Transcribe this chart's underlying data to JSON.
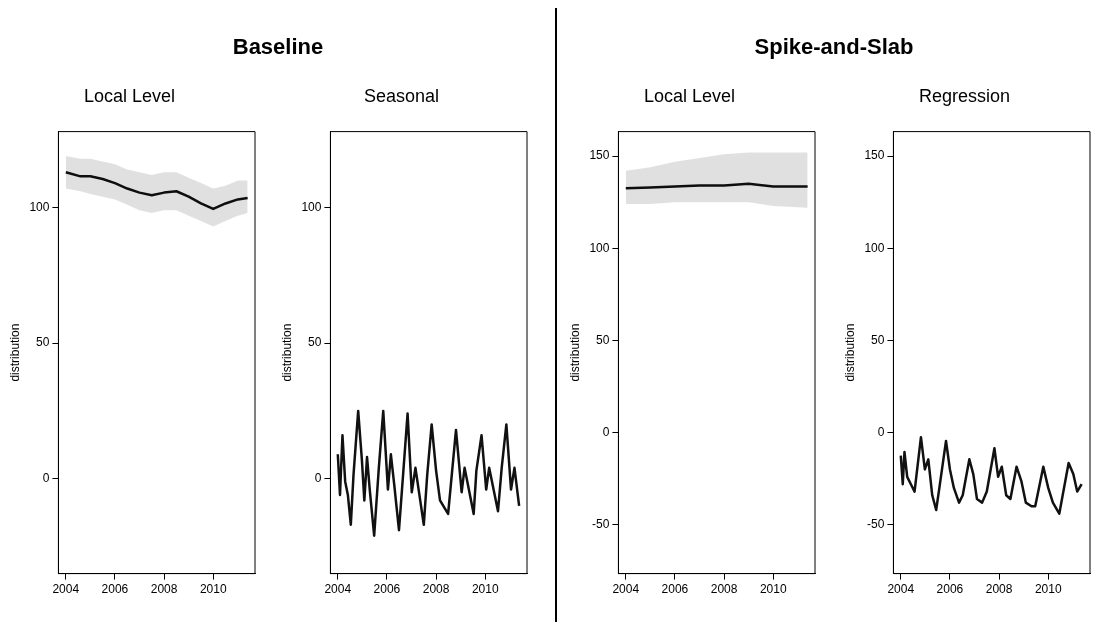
{
  "chart_data": [
    {
      "type": "line",
      "title": "Local Level",
      "ylabel": "distribution",
      "annotations": [
        "Baseline"
      ],
      "xlim": [
        2003.7,
        2011.7
      ],
      "xticks": [
        2004,
        2006,
        2008,
        2010
      ],
      "ylim": [
        -35,
        128
      ],
      "yticks": [
        0,
        50,
        100
      ],
      "grid": false,
      "legend": false,
      "series": [
        {
          "color": "#111111",
          "x": [
            2004,
            2004.6,
            2005,
            2005.5,
            2006,
            2006.5,
            2007,
            2007.5,
            2008,
            2008.5,
            2009,
            2009.5,
            2010,
            2010.5,
            2011,
            2011.4
          ],
          "values": [
            113,
            111.5,
            111.5,
            110.5,
            109,
            107,
            105.5,
            104.5,
            105.5,
            106,
            104,
            101.5,
            99.5,
            101.5,
            103,
            103.5
          ],
          "lower": [
            107,
            106,
            105,
            104,
            103,
            101,
            99,
            98,
            99,
            99,
            97,
            95,
            93,
            95,
            97,
            98
          ],
          "upper": [
            119,
            118,
            118,
            117,
            116,
            114,
            113,
            112,
            113,
            113,
            111,
            109,
            107,
            108,
            110,
            110
          ]
        }
      ]
    },
    {
      "type": "line",
      "title": "Seasonal",
      "ylabel": "distribution",
      "xlim": [
        2003.7,
        2011.7
      ],
      "xticks": [
        2004,
        2006,
        2008,
        2010
      ],
      "ylim": [
        -35,
        128
      ],
      "yticks": [
        0,
        50,
        100
      ],
      "grid": false,
      "legend": false,
      "series": [
        {
          "color": "#111111",
          "x": [
            2004.0,
            2004.09,
            2004.19,
            2004.3,
            2004.41,
            2004.53,
            2004.64,
            2004.83,
            2004.98,
            2005.08,
            2005.19,
            2005.3,
            2005.48,
            2005.67,
            2005.85,
            2006.04,
            2006.16,
            2006.3,
            2006.49,
            2006.67,
            2006.84,
            2007.01,
            2007.16,
            2007.5,
            2007.64,
            2007.82,
            2008.0,
            2008.16,
            2008.49,
            2008.81,
            2009.04,
            2009.16,
            2009.53,
            2009.64,
            2009.85,
            2010.04,
            2010.16,
            2010.52,
            2010.67,
            2010.86,
            2011.05,
            2011.19,
            2011.38
          ],
          "values": [
            9,
            -6,
            16,
            -1,
            -6,
            -17,
            1.5,
            25,
            7,
            -8,
            8,
            -4,
            -21,
            4,
            25,
            -4,
            9,
            -2.5,
            -19,
            3,
            24,
            -5,
            4,
            -17,
            1.5,
            20,
            3,
            -8,
            -13,
            18,
            -5,
            4,
            -13,
            3,
            16,
            -4,
            4,
            -12,
            4,
            20,
            -4,
            4,
            -10
          ]
        }
      ]
    },
    {
      "type": "line",
      "title": "Local Level",
      "ylabel": "distribution",
      "annotations": [
        "Spike-and-Slab"
      ],
      "xlim": [
        2003.7,
        2011.7
      ],
      "xticks": [
        2004,
        2006,
        2008,
        2010
      ],
      "ylim": [
        -76.5,
        163.3
      ],
      "yticks": [
        -50,
        0,
        50,
        100,
        150
      ],
      "grid": false,
      "legend": false,
      "series": [
        {
          "color": "#111111",
          "x": [
            2004,
            2005,
            2006,
            2007,
            2008,
            2009,
            2010,
            2011.4
          ],
          "values": [
            132.5,
            133,
            133.5,
            134,
            134,
            135,
            133.5,
            133.5
          ],
          "lower": [
            124,
            124,
            125,
            125,
            125,
            125,
            123,
            122
          ],
          "upper": [
            142,
            144,
            147,
            149,
            151,
            152,
            152,
            152
          ]
        }
      ]
    },
    {
      "type": "line",
      "title": "Regression",
      "ylabel": "distribution",
      "xlim": [
        2003.7,
        2011.7
      ],
      "xticks": [
        2004,
        2006,
        2008,
        2010
      ],
      "ylim": [
        -76.5,
        163.3
      ],
      "yticks": [
        -50,
        0,
        50,
        100,
        150
      ],
      "grid": false,
      "legend": false,
      "series": [
        {
          "color": "#111111",
          "x": [
            2004.0,
            2004.08,
            2004.15,
            2004.26,
            2004.41,
            2004.56,
            2004.82,
            2004.98,
            2005.12,
            2005.28,
            2005.44,
            2005.57,
            2005.84,
            2006.0,
            2006.16,
            2006.37,
            2006.52,
            2006.79,
            2006.95,
            2007.1,
            2007.31,
            2007.5,
            2007.81,
            2007.96,
            2008.11,
            2008.29,
            2008.46,
            2008.71,
            2008.91,
            2009.09,
            2009.32,
            2009.47,
            2009.8,
            2010.0,
            2010.19,
            2010.45,
            2010.83,
            2011.02,
            2011.18,
            2011.36
          ],
          "values": [
            -12.5,
            -28,
            -10.5,
            -24,
            -28,
            -32,
            -2.5,
            -20,
            -14.5,
            -34,
            -42,
            -30,
            -4.5,
            -20,
            -30,
            -38,
            -34,
            -14.5,
            -22.5,
            -36,
            -38,
            -32,
            -8.5,
            -24,
            -18.5,
            -34,
            -36,
            -18.5,
            -26.5,
            -38,
            -40,
            -40,
            -18.5,
            -30,
            -38,
            -44,
            -16.5,
            -22.5,
            -32,
            -28
          ]
        }
      ]
    }
  ]
}
